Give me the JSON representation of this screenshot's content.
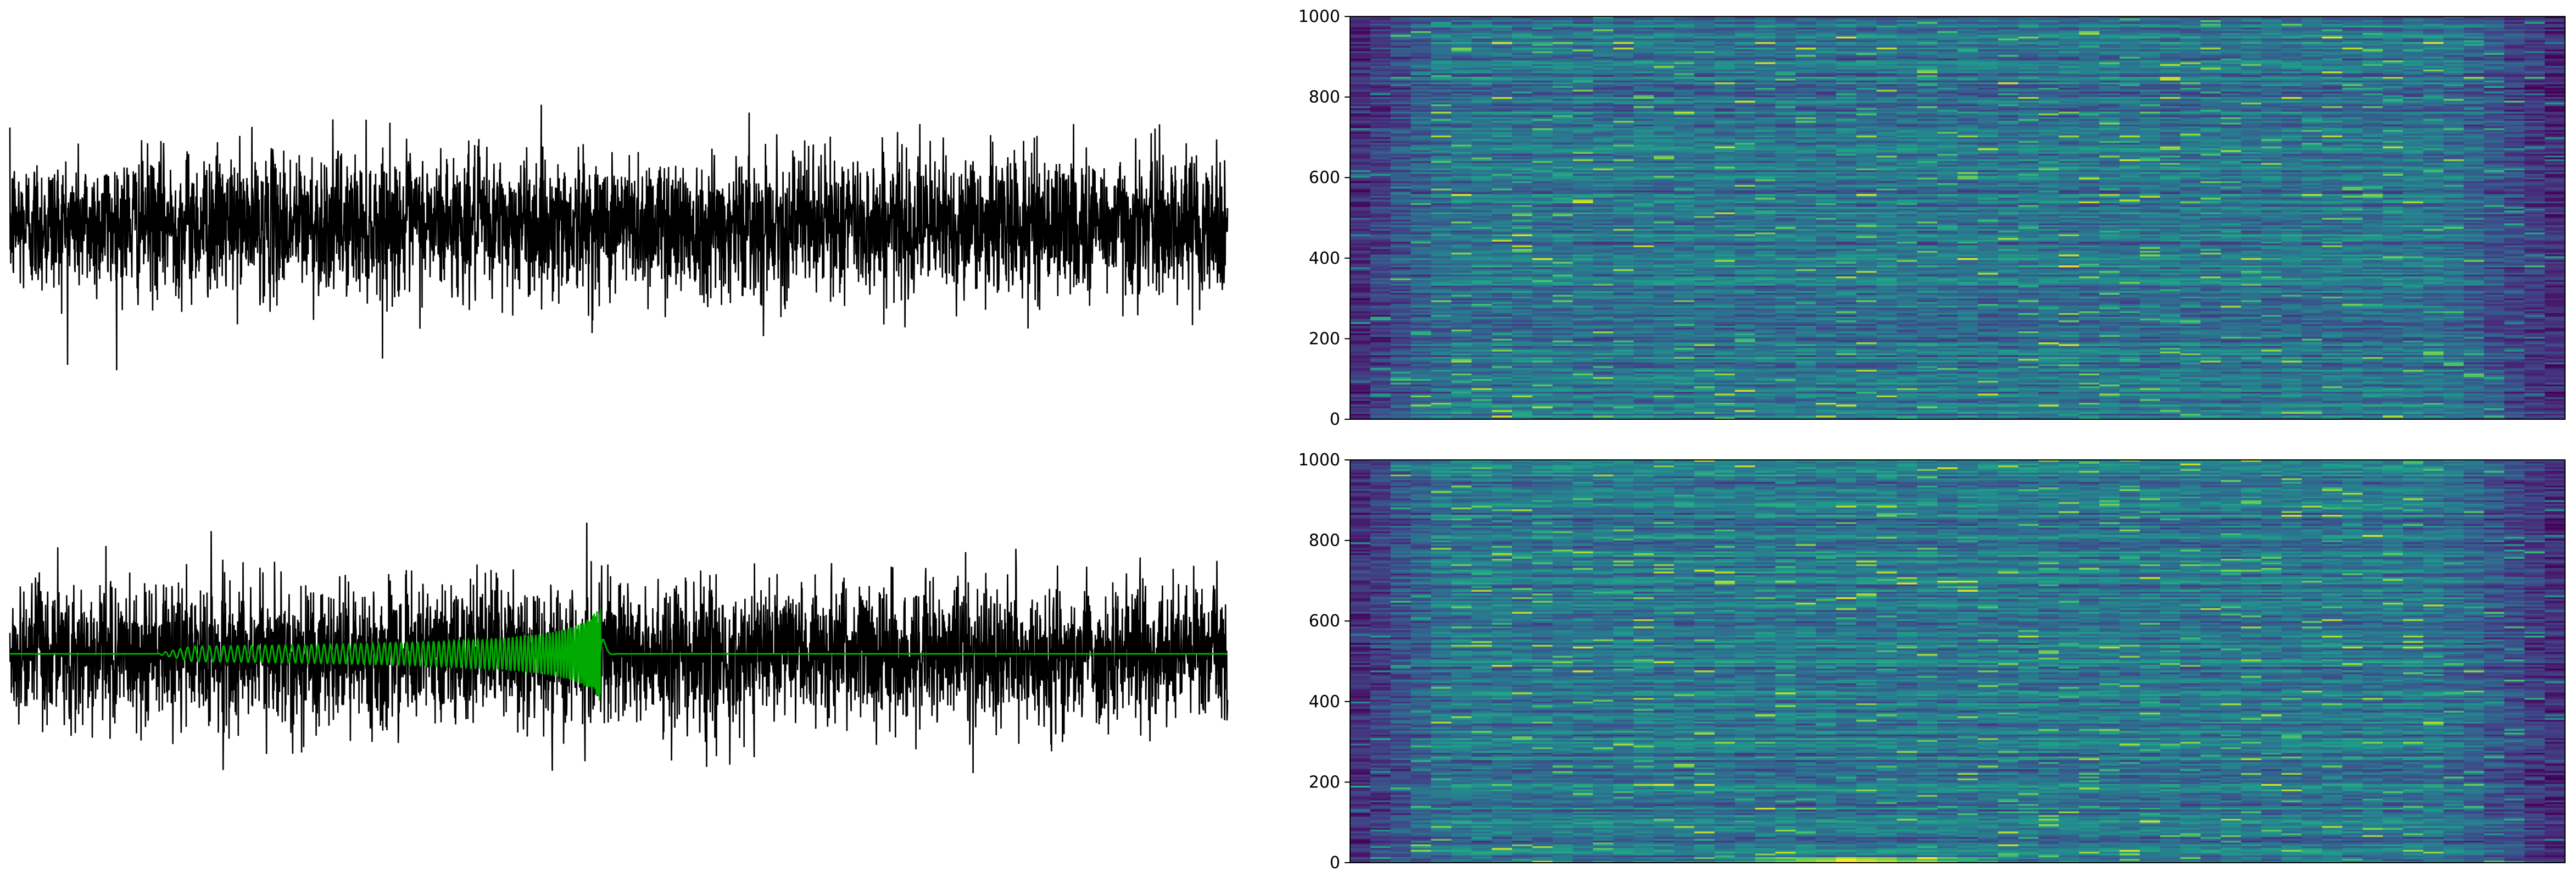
{
  "chart_data": [
    {
      "panel": "top-left",
      "type": "line",
      "title": "",
      "xlabel": "",
      "ylabel": "",
      "axes_visible": false,
      "x_samples": 4096,
      "ylim": [
        -5.6,
        5.6
      ],
      "series": [
        {
          "color": "#000000",
          "description_values": {
            "mean": 0.0,
            "std": 1.0,
            "min": -4.6,
            "max": 4.9
          }
        }
      ]
    },
    {
      "panel": "top-right",
      "type": "heatmap",
      "title": "",
      "xlabel": "",
      "ylabel": "",
      "colormap": "viridis",
      "ylim": [
        0,
        1000
      ],
      "yticks": [
        "0",
        "200",
        "400",
        "600",
        "800",
        "1000"
      ],
      "x_ticks_visible": false,
      "rows": 1000
    },
    {
      "panel": "bottom-left",
      "type": "line",
      "title": "",
      "xlabel": "",
      "ylabel": "",
      "axes_visible": false,
      "x_samples": 4096,
      "ylim": [
        -5.6,
        5.6
      ],
      "series": [
        {
          "color": "#000000",
          "description_values": {
            "mean": 0.0,
            "std": 1.0,
            "min": -5.0,
            "max": 4.9
          }
        },
        {
          "color": "#00aa00",
          "chirp_start_fraction": 0.12,
          "chirp_merger_fraction": 0.485,
          "chirp_peak_amplitude": 1.4
        }
      ]
    },
    {
      "panel": "bottom-right",
      "type": "heatmap",
      "title": "",
      "xlabel": "",
      "ylabel": "",
      "colormap": "viridis",
      "ylim": [
        0,
        1000
      ],
      "yticks": [
        "0",
        "200",
        "400",
        "600",
        "800",
        "1000"
      ],
      "x_ticks_visible": false,
      "rows": 1000
    }
  ],
  "colors": {
    "noise": "#000000",
    "signal": "#00aa00",
    "viridis": [
      "#440154",
      "#482878",
      "#3e4989",
      "#31688e",
      "#26828e",
      "#1f9e89",
      "#35b779",
      "#6ece58",
      "#b5de2b",
      "#fde725"
    ]
  }
}
